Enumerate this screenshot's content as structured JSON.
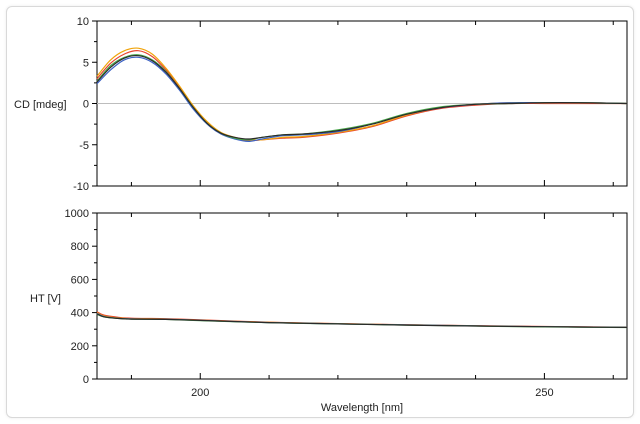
{
  "chart_data": [
    {
      "type": "line",
      "ylabel": "CD [mdeg]",
      "xlim": [
        185,
        262
      ],
      "ylim": [
        -10,
        10
      ],
      "yticks": [
        -10,
        -5,
        0,
        5,
        10
      ],
      "zero_line": true,
      "grid": false,
      "x": [
        185,
        187,
        189,
        191,
        193,
        195,
        197,
        199,
        201,
        203,
        205,
        207,
        209,
        212,
        215,
        220,
        225,
        230,
        235,
        240,
        245,
        250,
        255,
        262
      ],
      "series": [
        {
          "color": "#e8442f",
          "values": [
            3.0,
            4.9,
            6.0,
            6.4,
            5.7,
            4.1,
            2.0,
            -0.4,
            -2.3,
            -3.6,
            -4.2,
            -4.5,
            -4.4,
            -4.2,
            -4.1,
            -3.6,
            -2.8,
            -1.5,
            -0.6,
            -0.2,
            0.0,
            0.0,
            0.0,
            0.0
          ]
        },
        {
          "color": "#f0a30a",
          "values": [
            3.3,
            5.3,
            6.4,
            6.7,
            6.0,
            4.3,
            2.1,
            -0.3,
            -2.2,
            -3.5,
            -4.1,
            -4.4,
            -4.4,
            -4.1,
            -4.0,
            -3.5,
            -2.7,
            -1.4,
            -0.5,
            -0.1,
            0.1,
            0.1,
            0.1,
            0.0
          ]
        },
        {
          "color": "#3c62c4",
          "values": [
            2.4,
            4.1,
            5.3,
            5.6,
            5.0,
            3.6,
            1.6,
            -0.7,
            -2.5,
            -3.7,
            -4.3,
            -4.6,
            -4.3,
            -3.9,
            -3.8,
            -3.4,
            -2.5,
            -1.3,
            -0.5,
            -0.1,
            0.1,
            0.1,
            0.1,
            0.0
          ]
        },
        {
          "color": "#49a84a",
          "values": [
            2.7,
            4.6,
            5.6,
            5.9,
            5.3,
            3.9,
            1.8,
            -0.5,
            -2.4,
            -3.6,
            -4.2,
            -4.4,
            -4.1,
            -3.8,
            -3.7,
            -3.2,
            -2.4,
            -1.2,
            -0.4,
            -0.1,
            0.0,
            0.1,
            0.1,
            0.0
          ]
        },
        {
          "color": "#2a2a2a",
          "values": [
            2.6,
            4.4,
            5.5,
            5.8,
            5.2,
            3.8,
            1.8,
            -0.5,
            -2.4,
            -3.6,
            -4.1,
            -4.3,
            -4.1,
            -3.8,
            -3.7,
            -3.3,
            -2.5,
            -1.3,
            -0.5,
            -0.1,
            0.0,
            0.1,
            0.1,
            0.0
          ]
        }
      ]
    },
    {
      "type": "line",
      "ylabel": "HT [V]",
      "xlabel": "Wavelength [nm]",
      "xlim": [
        185,
        262
      ],
      "ylim": [
        0,
        1000
      ],
      "yticks": [
        0,
        200,
        400,
        600,
        800,
        1000
      ],
      "xticks": [
        200,
        250
      ],
      "grid": false,
      "x": [
        185,
        186,
        188,
        190,
        195,
        200,
        210,
        220,
        230,
        240,
        250,
        262
      ],
      "series": [
        {
          "color": "#e8442f",
          "values": [
            405,
            385,
            372,
            366,
            363,
            356,
            342,
            334,
            327,
            321,
            316,
            312
          ]
        },
        {
          "color": "#f0a30a",
          "values": [
            400,
            380,
            368,
            363,
            361,
            354,
            341,
            333,
            326,
            320,
            315,
            311
          ]
        },
        {
          "color": "#3c62c4",
          "values": [
            395,
            377,
            366,
            362,
            360,
            353,
            340,
            332,
            326,
            320,
            315,
            311
          ]
        },
        {
          "color": "#49a84a",
          "values": [
            390,
            374,
            365,
            361,
            359,
            352,
            339,
            332,
            325,
            319,
            314,
            310
          ]
        },
        {
          "color": "#2a2a2a",
          "values": [
            392,
            375,
            365,
            361,
            359,
            353,
            340,
            332,
            325,
            319,
            315,
            311
          ]
        }
      ]
    }
  ]
}
